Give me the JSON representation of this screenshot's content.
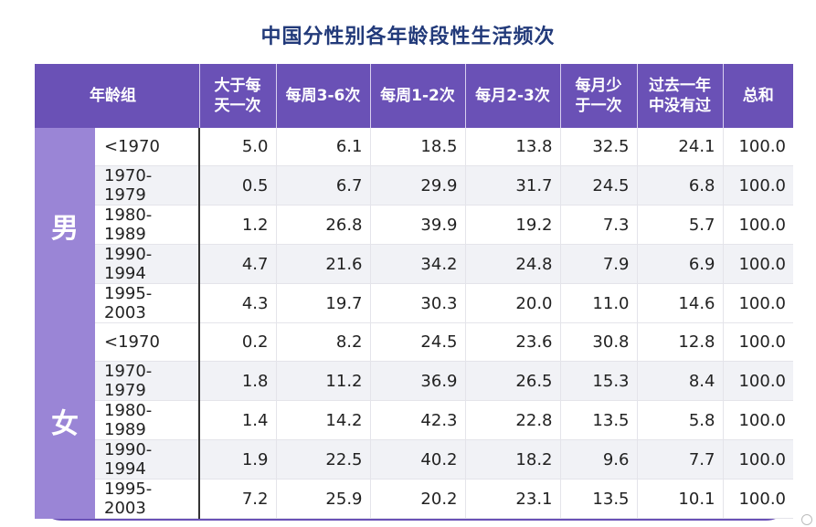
{
  "chart_data": {
    "type": "table",
    "title": "中国分性别各年龄段性生活频次",
    "headers": [
      "年龄组",
      "大于每\n天一次",
      "每周3-6次",
      "每周1-2次",
      "每月2-3次",
      "每月少\n于一次",
      "过去一年\n中没有过",
      "总和"
    ],
    "groups": [
      {
        "name": "男",
        "rows": [
          {
            "age": "<1970",
            "values": [
              "5.0",
              "6.1",
              "18.5",
              "13.8",
              "32.5",
              "24.1",
              "100.0"
            ]
          },
          {
            "age": "1970-1979",
            "values": [
              "0.5",
              "6.7",
              "29.9",
              "31.7",
              "24.5",
              "6.8",
              "100.0"
            ]
          },
          {
            "age": "1980-1989",
            "values": [
              "1.2",
              "26.8",
              "39.9",
              "19.2",
              "7.3",
              "5.7",
              "100.0"
            ]
          },
          {
            "age": "1990-1994",
            "values": [
              "4.7",
              "21.6",
              "34.2",
              "24.8",
              "7.9",
              "6.9",
              "100.0"
            ]
          },
          {
            "age": "1995-2003",
            "values": [
              "4.3",
              "19.7",
              "30.3",
              "20.0",
              "11.0",
              "14.6",
              "100.0"
            ]
          }
        ]
      },
      {
        "name": "女",
        "rows": [
          {
            "age": "<1970",
            "values": [
              "0.2",
              "8.2",
              "24.5",
              "23.6",
              "30.8",
              "12.8",
              "100.0"
            ]
          },
          {
            "age": "1970-1979",
            "values": [
              "1.8",
              "11.2",
              "36.9",
              "26.5",
              "15.3",
              "8.4",
              "100.0"
            ]
          },
          {
            "age": "1980-1989",
            "values": [
              "1.4",
              "14.2",
              "42.3",
              "22.8",
              "13.5",
              "5.8",
              "100.0"
            ]
          },
          {
            "age": "1990-1994",
            "values": [
              "1.9",
              "22.5",
              "40.2",
              "18.2",
              "9.6",
              "7.7",
              "100.0"
            ]
          },
          {
            "age": "1995-2003",
            "values": [
              "7.2",
              "25.9",
              "20.2",
              "23.1",
              "13.5",
              "10.1",
              "100.0"
            ]
          }
        ]
      }
    ]
  },
  "colors": {
    "header_bg": "#6a51b6",
    "sex_bg": "#9a85d6",
    "title": "#223a7a",
    "alt_row": "#f1f2f6"
  }
}
